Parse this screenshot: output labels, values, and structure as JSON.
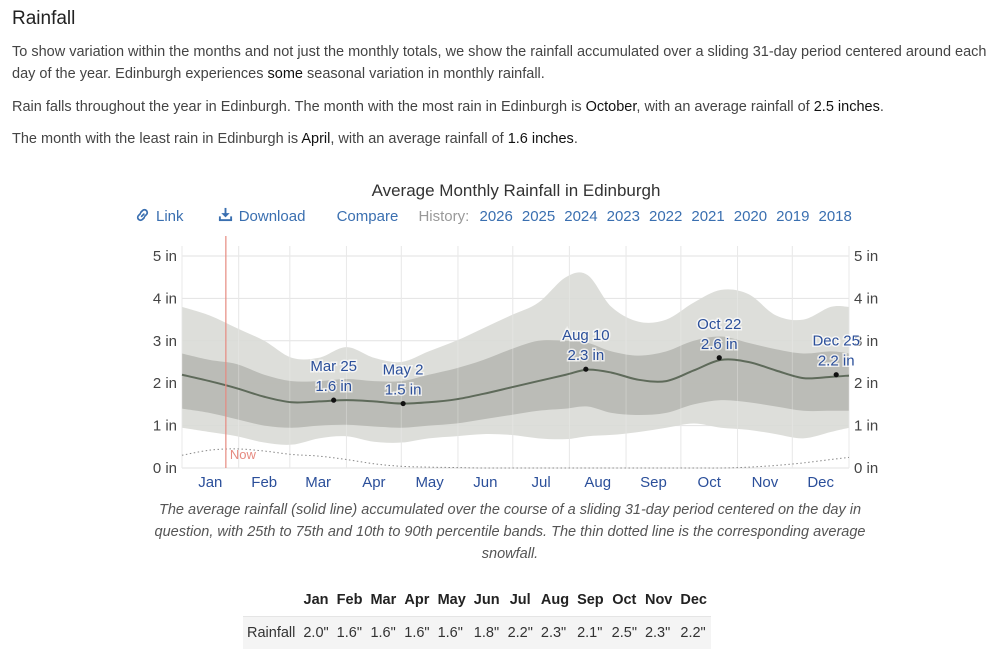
{
  "section": {
    "title": "Rainfall",
    "p1_a": "To show variation within the months and not just the monthly totals, we show the rainfall accumulated over a sliding 31-day period centered around each day of the year. Edinburgh experiences ",
    "p1_b": "some",
    "p1_c": " seasonal variation in monthly rainfall.",
    "p2_a": "Rain falls throughout the year in Edinburgh. The month with the most rain in Edinburgh is ",
    "p2_b": "October",
    "p2_c": ", with an average rainfall of ",
    "p2_d": "2.5 inches",
    "p2_e": ".",
    "p3_a": "The month with the least rain in Edinburgh is ",
    "p3_b": "April",
    "p3_c": ", with an average rainfall of ",
    "p3_d": "1.6 inches",
    "p3_e": "."
  },
  "toolbar": {
    "link_icon": "link-icon",
    "link_label": "Link",
    "download_icon": "download-icon",
    "download_label": "Download",
    "compare_label": "Compare",
    "history_label": "History:",
    "years": [
      "2026",
      "2025",
      "2024",
      "2023",
      "2022",
      "2021",
      "2020",
      "2019",
      "2018"
    ]
  },
  "caption": "The average rainfall (solid line) accumulated over the course of a sliding 31-day period centered on the day in question, with 25th to 75th and 10th to 90th percentile bands. The thin dotted line is the corresponding average snowfall.",
  "colors": {
    "band_outer": "#d9dad6",
    "band_inner": "#b7b8b2",
    "mean_line": "#5e6a5a",
    "now_line": "#e68a80",
    "label_blue": "#2b4f9a",
    "grid": "#e2e2e2"
  },
  "chart_data": {
    "type": "area",
    "title": "Average Monthly Rainfall in Edinburgh",
    "xlabel": "",
    "ylabel": "",
    "x_unit": "day of year",
    "xlim": [
      0,
      365
    ],
    "ylim": [
      0,
      5
    ],
    "y_ticks": [
      0,
      1,
      2,
      3,
      4,
      5
    ],
    "y_tick_labels": [
      "0 in",
      "1 in",
      "2 in",
      "3 in",
      "4 in",
      "5 in"
    ],
    "month_labels": [
      "Jan",
      "Feb",
      "Mar",
      "Apr",
      "May",
      "Jun",
      "Jul",
      "Aug",
      "Sep",
      "Oct",
      "Nov",
      "Dec"
    ],
    "month_starts": [
      0,
      31,
      59,
      90,
      120,
      151,
      181,
      212,
      243,
      273,
      304,
      334,
      365
    ],
    "now_day": 24,
    "now_label": "Now",
    "grid": true,
    "x": [
      0,
      15,
      30,
      45,
      60,
      75,
      90,
      105,
      120,
      135,
      150,
      165,
      180,
      195,
      210,
      222,
      235,
      250,
      265,
      280,
      295,
      310,
      325,
      340,
      355,
      365
    ],
    "series": [
      {
        "name": "Average rainfall",
        "values": [
          2.2,
          2.05,
          1.88,
          1.68,
          1.55,
          1.57,
          1.6,
          1.57,
          1.52,
          1.55,
          1.62,
          1.75,
          1.9,
          2.05,
          2.2,
          2.32,
          2.25,
          2.08,
          2.05,
          2.3,
          2.55,
          2.5,
          2.3,
          2.12,
          2.15,
          2.18
        ]
      },
      {
        "name": "25th percentile",
        "values": [
          1.4,
          1.3,
          1.15,
          1.0,
          0.95,
          1.0,
          1.02,
          0.98,
          0.95,
          1.0,
          1.05,
          1.15,
          1.25,
          1.35,
          1.4,
          1.45,
          1.3,
          1.25,
          1.3,
          1.5,
          1.6,
          1.55,
          1.45,
          1.35,
          1.35,
          1.35
        ]
      },
      {
        "name": "75th percentile",
        "values": [
          2.7,
          2.55,
          2.45,
          2.2,
          2.05,
          2.05,
          2.1,
          2.05,
          2.05,
          2.2,
          2.35,
          2.55,
          2.8,
          3.0,
          3.0,
          2.95,
          2.75,
          2.65,
          2.75,
          3.0,
          3.1,
          2.95,
          2.8,
          2.7,
          2.75,
          2.7
        ]
      },
      {
        "name": "10th percentile",
        "values": [
          0.95,
          0.85,
          0.75,
          0.6,
          0.55,
          0.7,
          0.75,
          0.62,
          0.6,
          0.7,
          0.75,
          0.8,
          0.78,
          0.7,
          0.68,
          0.75,
          0.78,
          0.85,
          0.95,
          1.05,
          0.95,
          0.9,
          0.8,
          0.7,
          0.85,
          0.95
        ]
      },
      {
        "name": "90th percentile",
        "values": [
          3.8,
          3.6,
          3.3,
          3.0,
          2.6,
          2.6,
          2.85,
          2.6,
          2.5,
          2.75,
          3.0,
          3.3,
          3.6,
          3.9,
          4.5,
          4.55,
          3.8,
          3.45,
          3.5,
          3.9,
          4.2,
          4.1,
          3.6,
          3.5,
          3.8,
          3.8
        ]
      },
      {
        "name": "Average snowfall",
        "values": [
          0.3,
          0.42,
          0.45,
          0.4,
          0.32,
          0.28,
          0.2,
          0.1,
          0.04,
          0.02,
          0.01,
          0.0,
          0.0,
          0.0,
          0.0,
          0.0,
          0.0,
          0.0,
          0.0,
          0.0,
          0.0,
          0.02,
          0.06,
          0.12,
          0.2,
          0.25
        ]
      }
    ],
    "annotations": [
      {
        "day": 83,
        "value": 1.6,
        "date": "Mar 25",
        "label": "1.6 in"
      },
      {
        "day": 121,
        "value": 1.52,
        "date": "May 2",
        "label": "1.5 in"
      },
      {
        "day": 221,
        "value": 2.33,
        "date": "Aug 10",
        "label": "2.3 in"
      },
      {
        "day": 294,
        "value": 2.6,
        "date": "Oct 22",
        "label": "2.6 in"
      },
      {
        "day": 358,
        "value": 2.2,
        "date": "Dec 25",
        "label": "2.2 in"
      }
    ],
    "table": {
      "row_label": "Rainfall",
      "months": [
        "Jan",
        "Feb",
        "Mar",
        "Apr",
        "May",
        "Jun",
        "Jul",
        "Aug",
        "Sep",
        "Oct",
        "Nov",
        "Dec"
      ],
      "values": [
        "2.0\"",
        "1.6\"",
        "1.6\"",
        "1.6\"",
        "1.6\"",
        "1.8\"",
        "2.2\"",
        "2.3\"",
        "2.1\"",
        "2.5\"",
        "2.3\"",
        "2.2\""
      ]
    }
  }
}
